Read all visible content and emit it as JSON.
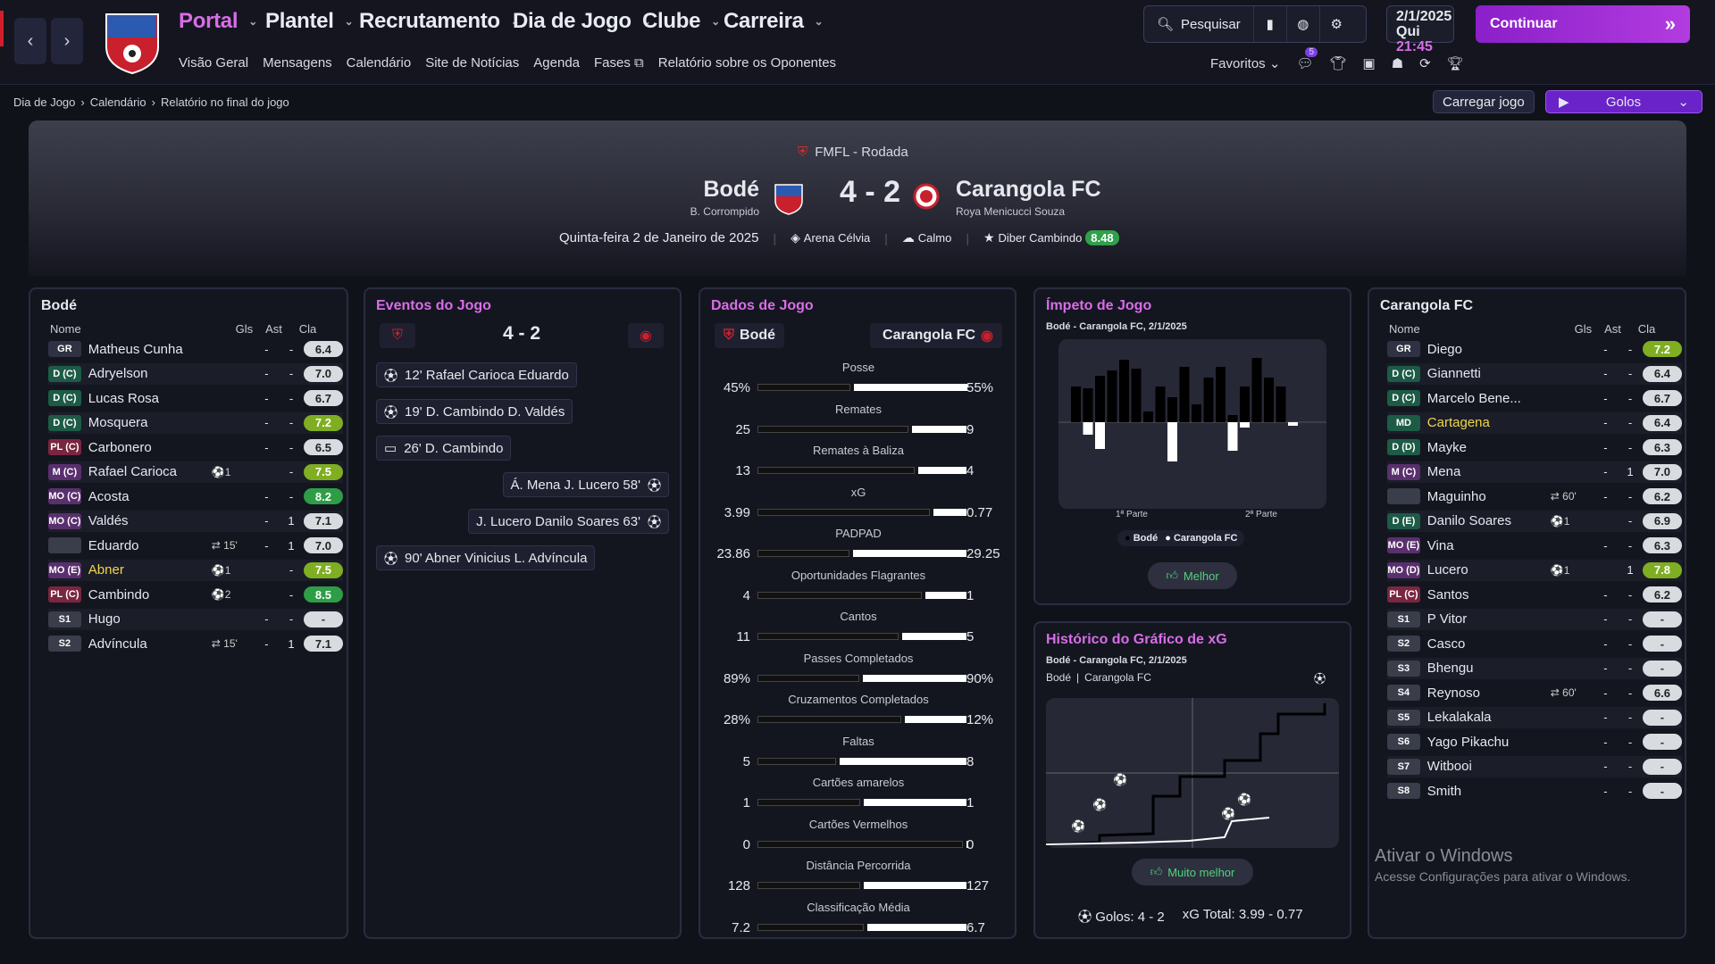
{
  "nav": {
    "main": [
      "Portal",
      "Plantel",
      "Recrutamento",
      "Dia de Jogo",
      "Clube",
      "Carreira"
    ],
    "sub": [
      "Visão Geral",
      "Mensagens",
      "Calendário",
      "Site de Notícias",
      "Agenda",
      "Fases",
      "Relatório sobre os Oponentes"
    ],
    "search": "Pesquisar",
    "date": "2/1/2025",
    "day": "Qui",
    "time": "21:45",
    "continue": "Continuar",
    "favorites": "Favoritos",
    "fav_badge": "5",
    "accent": "#d86de8"
  },
  "breadcrumb": [
    "Dia de Jogo",
    "Calendário",
    "Relatório no final do jogo"
  ],
  "actions": {
    "load": "Carregar jogo",
    "highlights": "Golos"
  },
  "match": {
    "competition": "FMFL - Rodada",
    "home": "Bodé",
    "away": "Carangola FC",
    "home_manager": "B. Corrompido",
    "away_manager": "Roya Menicucci Souza",
    "score": "4 - 2",
    "date": "Quinta-feira 2 de Janeiro de 2025",
    "stadium": "Arena Célvia",
    "weather": "Calmo",
    "motm": "Diber Cambindo",
    "motm_rating": "8.48"
  },
  "home_panel": {
    "title": "Bodé",
    "cols": [
      "Nome",
      "Gls",
      "Ast",
      "Cla"
    ],
    "rows": [
      {
        "pos": "GR",
        "name": "Matheus Cunha",
        "ev": "",
        "gls": "-",
        "ast": "-",
        "rating": "6.4"
      },
      {
        "pos": "D (C)",
        "name": "Adryelson",
        "ev": "",
        "gls": "-",
        "ast": "-",
        "rating": "7.0"
      },
      {
        "pos": "D (C)",
        "name": "Lucas Rosa",
        "ev": "",
        "gls": "-",
        "ast": "-",
        "rating": "6.7"
      },
      {
        "pos": "D (C)",
        "name": "Mosquera",
        "ev": "",
        "gls": "-",
        "ast": "-",
        "rating": "7.2"
      },
      {
        "pos": "PL (C)",
        "name": "Carbonero",
        "ev": "",
        "gls": "-",
        "ast": "-",
        "rating": "6.5"
      },
      {
        "pos": "M (C)",
        "name": "Rafael Carioca",
        "ev": "⚽1",
        "gls": "",
        "ast": "-",
        "rating": "7.5"
      },
      {
        "pos": "MO (C)",
        "name": "Acosta",
        "ev": "",
        "gls": "-",
        "ast": "-",
        "rating": "8.2"
      },
      {
        "pos": "MO (C)",
        "name": "Valdés",
        "ev": "",
        "gls": "-",
        "ast": "1",
        "rating": "7.1"
      },
      {
        "pos": "",
        "name": "Eduardo",
        "ev": "⇄ 15'",
        "gls": "-",
        "ast": "1",
        "rating": "7.0"
      },
      {
        "pos": "MO (E)",
        "name": "Abner",
        "ev": "⚽1",
        "gls": "",
        "ast": "-",
        "rating": "7.5",
        "hl": true
      },
      {
        "pos": "PL (C)",
        "name": "Cambindo",
        "ev": "⚽2",
        "gls": "",
        "ast": "-",
        "rating": "8.5"
      },
      {
        "pos": "S1",
        "name": "Hugo",
        "ev": "",
        "gls": "-",
        "ast": "-",
        "rating": "-"
      },
      {
        "pos": "S2",
        "name": "Advíncula",
        "ev": "⇄ 15'",
        "gls": "-",
        "ast": "1",
        "rating": "7.1"
      }
    ]
  },
  "away_panel": {
    "title": "Carangola FC",
    "cols": [
      "Nome",
      "Gls",
      "Ast",
      "Cla"
    ],
    "rows": [
      {
        "pos": "GR",
        "name": "Diego",
        "ev": "",
        "gls": "-",
        "ast": "-",
        "rating": "7.2"
      },
      {
        "pos": "D (C)",
        "name": "Giannetti",
        "ev": "",
        "gls": "-",
        "ast": "-",
        "rating": "6.4"
      },
      {
        "pos": "D (C)",
        "name": "Marcelo Bene...",
        "ev": "",
        "gls": "-",
        "ast": "-",
        "rating": "6.7"
      },
      {
        "pos": "MD",
        "name": "Cartagena",
        "ev": "",
        "gls": "-",
        "ast": "-",
        "rating": "6.4",
        "hl": true
      },
      {
        "pos": "D (D)",
        "name": "Mayke",
        "ev": "",
        "gls": "-",
        "ast": "-",
        "rating": "6.3"
      },
      {
        "pos": "M (C)",
        "name": "Mena",
        "ev": "",
        "gls": "-",
        "ast": "1",
        "rating": "7.0"
      },
      {
        "pos": "",
        "name": "Maguinho",
        "ev": "⇄ 60'",
        "gls": "-",
        "ast": "-",
        "rating": "6.2"
      },
      {
        "pos": "D (E)",
        "name": "Danilo Soares",
        "ev": "⚽1",
        "gls": "",
        "ast": "-",
        "rating": "6.9"
      },
      {
        "pos": "MO (E)",
        "name": "Vina",
        "ev": "",
        "gls": "-",
        "ast": "-",
        "rating": "6.3"
      },
      {
        "pos": "MO (D)",
        "name": "Lucero",
        "ev": "⚽1",
        "gls": "",
        "ast": "1",
        "rating": "7.8"
      },
      {
        "pos": "PL (C)",
        "name": "Santos",
        "ev": "",
        "gls": "-",
        "ast": "-",
        "rating": "6.2"
      },
      {
        "pos": "S1",
        "name": "P Vitor",
        "ev": "",
        "gls": "-",
        "ast": "-",
        "rating": "-"
      },
      {
        "pos": "S2",
        "name": "Casco",
        "ev": "",
        "gls": "-",
        "ast": "-",
        "rating": "-"
      },
      {
        "pos": "S3",
        "name": "Bhengu",
        "ev": "",
        "gls": "-",
        "ast": "-",
        "rating": "-"
      },
      {
        "pos": "S4",
        "name": "Reynoso",
        "ev": "⇄ 60'",
        "gls": "-",
        "ast": "-",
        "rating": "6.6"
      },
      {
        "pos": "S5",
        "name": "Lekalakala",
        "ev": "",
        "gls": "-",
        "ast": "-",
        "rating": "-"
      },
      {
        "pos": "S6",
        "name": "Yago Pikachu",
        "ev": "",
        "gls": "-",
        "ast": "-",
        "rating": "-"
      },
      {
        "pos": "S7",
        "name": "Witbooi",
        "ev": "",
        "gls": "-",
        "ast": "-",
        "rating": "-"
      },
      {
        "pos": "S8",
        "name": "Smith",
        "ev": "",
        "gls": "-",
        "ast": "-",
        "rating": "-"
      }
    ]
  },
  "events": {
    "title": "Eventos do Jogo",
    "score": "4 - 2",
    "items": [
      {
        "side": "home",
        "icon": "ball-icon",
        "text": "12'  Rafael Carioca  Eduardo"
      },
      {
        "side": "home",
        "icon": "ball-icon",
        "text": "19'  D. Cambindo  D. Valdés"
      },
      {
        "side": "home",
        "icon": "var-icon",
        "text": "26'  D. Cambindo"
      },
      {
        "side": "away",
        "icon": "ball-icon",
        "text": "Á. Mena  J. Lucero  58'"
      },
      {
        "side": "away",
        "icon": "ball-icon",
        "text": "J. Lucero  Danilo Soares  63'"
      },
      {
        "side": "home",
        "icon": "ball-icon",
        "text": "90'  Abner Vinicius  L. Advíncula"
      }
    ]
  },
  "stats": {
    "title": "Dados de Jogo",
    "home": "Bodé",
    "away": "Carangola FC",
    "rows": [
      {
        "label": "Posse",
        "home": "45%",
        "away": "55%",
        "h": 45,
        "a": 55
      },
      {
        "label": "Remates",
        "home": "25",
        "away": "9",
        "h": 25,
        "a": 9
      },
      {
        "label": "Remates à Baliza",
        "home": "13",
        "away": "4",
        "h": 13,
        "a": 4
      },
      {
        "label": "xG",
        "home": "3.99",
        "away": "0.77",
        "h": 3.99,
        "a": 0.77
      },
      {
        "label": "PADPAD",
        "home": "23.86",
        "away": "29.25",
        "h": 23.86,
        "a": 29.25
      },
      {
        "label": "Oportunidades Flagrantes",
        "home": "4",
        "away": "1",
        "h": 4,
        "a": 1
      },
      {
        "label": "Cantos",
        "home": "11",
        "away": "5",
        "h": 11,
        "a": 5
      },
      {
        "label": "Passes Completados",
        "home": "89%",
        "away": "90%",
        "h": 89,
        "a": 90
      },
      {
        "label": "Cruzamentos Completados",
        "home": "28%",
        "away": "12%",
        "h": 28,
        "a": 12
      },
      {
        "label": "Faltas",
        "home": "5",
        "away": "8",
        "h": 5,
        "a": 8
      },
      {
        "label": "Cartões amarelos",
        "home": "1",
        "away": "1",
        "h": 1,
        "a": 1
      },
      {
        "label": "Cartões Vermelhos",
        "home": "0",
        "away": "0",
        "h": 0,
        "a": 0
      },
      {
        "label": "Distância Percorrida",
        "home": "128",
        "away": "127",
        "h": 128,
        "a": 127
      },
      {
        "label": "Classificação Média",
        "home": "7.2",
        "away": "6.7",
        "h": 7.2,
        "a": 6.7
      }
    ]
  },
  "momentum": {
    "title": "Ímpeto de Jogo",
    "subtitle": "Bodé - Carangola FC, 2/1/2025",
    "half1": "1ª Parte",
    "half2": "2ª Parte",
    "legend": [
      "Bodé",
      "Carangola FC"
    ],
    "verdict": "Melhor"
  },
  "xg": {
    "title": "Histórico do Gráfico de xG",
    "subtitle": "Bodé - Carangola FC, 2/1/2025",
    "legend": [
      "Bodé",
      "Carangola FC"
    ],
    "verdict": "Muito melhor",
    "goals_label": "Golos: 4 - 2",
    "xg_label": "xG Total: 3.99  -  0.77"
  },
  "watermark": {
    "line1": "Ativar o Windows",
    "line2": "Acesse Configurações para ativar o Windows."
  }
}
